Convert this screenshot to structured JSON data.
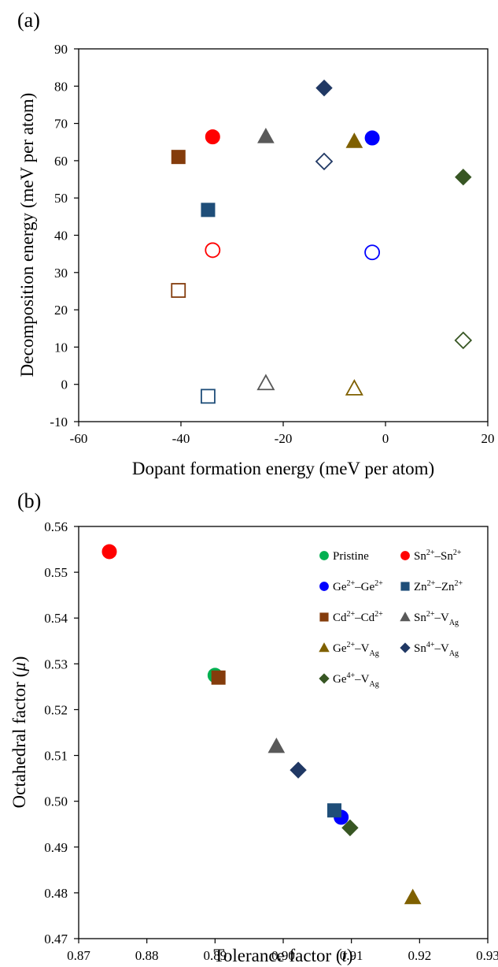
{
  "chart_data": [
    {
      "panel": "(a)",
      "type": "scatter",
      "xlabel": "Dopant formation energy (meV per atom)",
      "ylabel": "Decomposition energy (meV per atom)",
      "xlim": [
        -60,
        20
      ],
      "ylim": [
        -10,
        90
      ],
      "xticks": [
        -60,
        -40,
        -20,
        0,
        20
      ],
      "yticks": [
        -10,
        0,
        10,
        20,
        30,
        40,
        50,
        60,
        70,
        80,
        90
      ],
      "grid": false,
      "series": [
        {
          "marker": "circle",
          "color": "#ff0000",
          "filled": true,
          "points": [
            [
              -33.8,
              66.4
            ]
          ]
        },
        {
          "marker": "circle",
          "color": "#ff0000",
          "filled": false,
          "points": [
            [
              -33.8,
              36.0
            ]
          ]
        },
        {
          "marker": "circle",
          "color": "#0000ff",
          "filled": true,
          "points": [
            [
              -2.6,
              66.1
            ]
          ]
        },
        {
          "marker": "circle",
          "color": "#0000ff",
          "filled": false,
          "points": [
            [
              -2.6,
              35.4
            ]
          ]
        },
        {
          "marker": "square",
          "color": "#1f4e79",
          "filled": true,
          "points": [
            [
              -34.7,
              46.8
            ]
          ]
        },
        {
          "marker": "square",
          "color": "#1f4e79",
          "filled": false,
          "points": [
            [
              -34.7,
              -3.2
            ]
          ]
        },
        {
          "marker": "square",
          "color": "#843c0c",
          "filled": true,
          "points": [
            [
              -40.5,
              61.0
            ]
          ]
        },
        {
          "marker": "square",
          "color": "#843c0c",
          "filled": false,
          "points": [
            [
              -40.5,
              25.2
            ]
          ]
        },
        {
          "marker": "triangle",
          "color": "#595959",
          "filled": true,
          "points": [
            [
              -23.4,
              66.5
            ]
          ]
        },
        {
          "marker": "triangle",
          "color": "#595959",
          "filled": false,
          "points": [
            [
              -23.4,
              0.3
            ]
          ]
        },
        {
          "marker": "triangle",
          "color": "#7f6000",
          "filled": true,
          "points": [
            [
              -6.1,
              65.2
            ]
          ]
        },
        {
          "marker": "triangle",
          "color": "#7f6000",
          "filled": false,
          "points": [
            [
              -6.1,
              -1.1
            ]
          ]
        },
        {
          "marker": "diamond",
          "color": "#203864",
          "filled": true,
          "points": [
            [
              -12.0,
              79.5
            ]
          ]
        },
        {
          "marker": "diamond",
          "color": "#203864",
          "filled": false,
          "points": [
            [
              -12.0,
              59.8
            ]
          ]
        },
        {
          "marker": "diamond",
          "color": "#375623",
          "filled": true,
          "points": [
            [
              15.2,
              55.6
            ]
          ]
        },
        {
          "marker": "diamond",
          "color": "#375623",
          "filled": false,
          "points": [
            [
              15.2,
              11.8
            ]
          ]
        }
      ]
    },
    {
      "panel": "(b)",
      "type": "scatter",
      "xlabel_main": "Tolerance factor (",
      "xlabel_var": "t",
      "xlabel_end": ")",
      "ylabel_main": "Octahedral factor (",
      "ylabel_var": "μ",
      "ylabel_end": ")",
      "xlim": [
        0.87,
        0.93
      ],
      "ylim": [
        0.47,
        0.56
      ],
      "xticks": [
        "0.87",
        "0.88",
        "0.89",
        "0.90",
        "0.91",
        "0.92",
        "0.93"
      ],
      "yticks": [
        "0.47",
        "0.48",
        "0.49",
        "0.50",
        "0.51",
        "0.52",
        "0.53",
        "0.54",
        "0.55",
        "0.56"
      ],
      "grid": false,
      "legend_position": "top-right",
      "series": [
        {
          "label": [
            {
              "t": "Pristine"
            }
          ],
          "marker": "circle",
          "color": "#00b050",
          "filled": true,
          "points": [
            [
              0.89,
              0.5275
            ]
          ]
        },
        {
          "label": [
            {
              "t": "Sn"
            },
            {
              "t": "2+",
              "s": "sup"
            },
            {
              "t": "–Sn"
            },
            {
              "t": "2+",
              "s": "sup"
            }
          ],
          "marker": "circle",
          "color": "#ff0000",
          "filled": true,
          "points": [
            [
              0.8745,
              0.5545
            ]
          ]
        },
        {
          "label": [
            {
              "t": "Ge"
            },
            {
              "t": "2+",
              "s": "sup"
            },
            {
              "t": "–Ge"
            },
            {
              "t": "2+",
              "s": "sup"
            }
          ],
          "marker": "circle",
          "color": "#0000ff",
          "filled": true,
          "points": [
            [
              0.9085,
              0.4965
            ]
          ]
        },
        {
          "label": [
            {
              "t": "Zn"
            },
            {
              "t": "2+",
              "s": "sup"
            },
            {
              "t": "–Zn"
            },
            {
              "t": "2+",
              "s": "sup"
            }
          ],
          "marker": "square",
          "color": "#1f4e79",
          "filled": true,
          "points": [
            [
              0.9075,
              0.498
            ]
          ]
        },
        {
          "label": [
            {
              "t": "Cd"
            },
            {
              "t": "2+",
              "s": "sup"
            },
            {
              "t": "–Cd"
            },
            {
              "t": "2+",
              "s": "sup"
            }
          ],
          "marker": "square",
          "color": "#843c0c",
          "filled": true,
          "points": [
            [
              0.8905,
              0.527
            ]
          ]
        },
        {
          "label": [
            {
              "t": "Sn"
            },
            {
              "t": "2+",
              "s": "sup"
            },
            {
              "t": "–V"
            },
            {
              "t": "Ag",
              "s": "sub"
            }
          ],
          "marker": "triangle",
          "color": "#595959",
          "filled": true,
          "points": [
            [
              0.899,
              0.512
            ]
          ]
        },
        {
          "label": [
            {
              "t": "Ge"
            },
            {
              "t": "2+",
              "s": "sup"
            },
            {
              "t": "–V"
            },
            {
              "t": "Ag",
              "s": "sub"
            }
          ],
          "marker": "triangle",
          "color": "#7f6000",
          "filled": true,
          "points": [
            [
              0.919,
              0.479
            ]
          ]
        },
        {
          "label": [
            {
              "t": "Sn"
            },
            {
              "t": "4+",
              "s": "sup"
            },
            {
              "t": "–V"
            },
            {
              "t": "Ag",
              "s": "sub"
            }
          ],
          "marker": "diamond",
          "color": "#203864",
          "filled": true,
          "points": [
            [
              0.9022,
              0.5068
            ]
          ]
        },
        {
          "label": [
            {
              "t": "Ge"
            },
            {
              "t": "4+",
              "s": "sup"
            },
            {
              "t": "–V"
            },
            {
              "t": "Ag",
              "s": "sub"
            }
          ],
          "marker": "diamond",
          "color": "#375623",
          "filled": true,
          "points": [
            [
              0.9098,
              0.4942
            ]
          ]
        }
      ]
    }
  ]
}
